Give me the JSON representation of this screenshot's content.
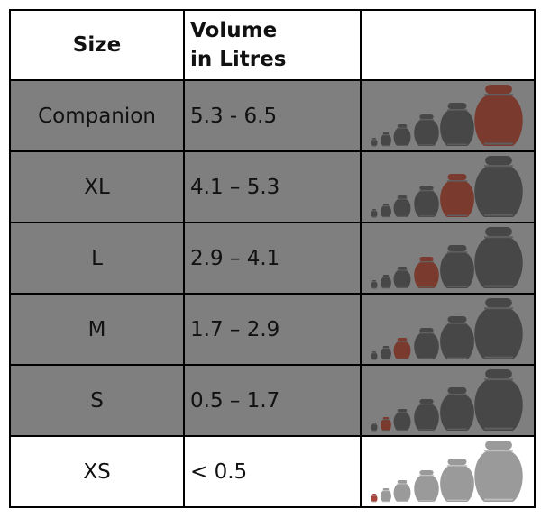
{
  "table": {
    "header": [
      "Size",
      "Volume in Litres"
    ],
    "rows": [
      [
        "Companion",
        "5.3 - 6.5"
      ],
      [
        "XL",
        "4.1 – 5.3"
      ],
      [
        "L",
        "2.9 – 4.1"
      ],
      [
        "M",
        "1.7 – 2.9"
      ],
      [
        "S",
        "0.5 – 1.7"
      ],
      [
        "XS",
        "< 0.5"
      ]
    ]
  }
}
